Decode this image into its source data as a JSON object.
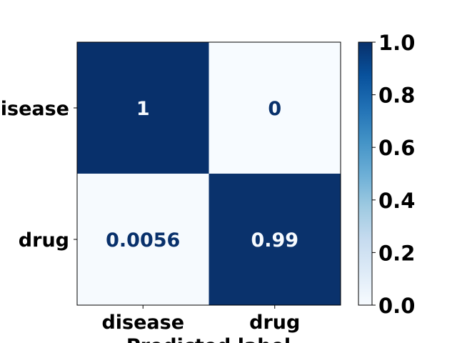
{
  "chart_data": {
    "type": "heatmap",
    "title": "",
    "xlabel": "Predicted label",
    "ylabel": "",
    "x_categories": [
      "disease",
      "drug"
    ],
    "y_categories": [
      "disease",
      "drug"
    ],
    "values": [
      [
        1,
        0
      ],
      [
        0.0056,
        0.99
      ]
    ],
    "cell_labels": [
      [
        "1",
        "0"
      ],
      [
        "0.0056",
        "0.99"
      ]
    ],
    "colorbar": {
      "range": [
        0,
        1
      ],
      "ticks": [
        "0.0",
        "0.2",
        "0.4",
        "0.6",
        "0.8",
        "1.0"
      ],
      "colormap": "Blues"
    },
    "colors": {
      "low": "#f7fbff",
      "high": "#08306b",
      "text_on_dark": "#f7fbff",
      "text_on_light": "#08306b"
    }
  }
}
